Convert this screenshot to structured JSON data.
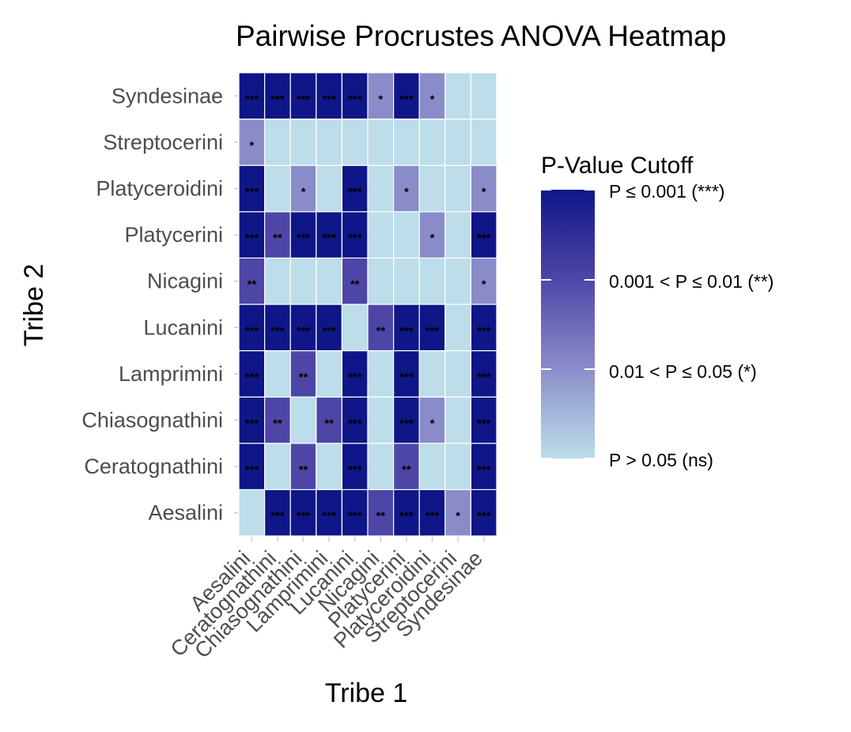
{
  "chart_data": {
    "type": "heatmap",
    "title": "Pairwise Procrustes ANOVA Heatmap",
    "xlabel": "Tribe 1",
    "ylabel": "Tribe 2",
    "x_categories": [
      "Aesalini",
      "Ceratognathini",
      "Chiasognathini",
      "Lamprimini",
      "Lucanini",
      "Nicagini",
      "Platycerini",
      "Platyceroidini",
      "Streptocerini",
      "Syndesinae"
    ],
    "y_categories": [
      "Aesalini",
      "Ceratognathini",
      "Chiasognathini",
      "Lamprimini",
      "Lucanini",
      "Nicagini",
      "Platycerini",
      "Platyceroidini",
      "Streptocerini",
      "Syndesinae"
    ],
    "levels": [
      "ns",
      "*",
      "**",
      "***"
    ],
    "matrix_y_by_x": [
      [
        "ns",
        "***",
        "***",
        "***",
        "***",
        "**",
        "***",
        "***",
        "*",
        "***"
      ],
      [
        "***",
        "ns",
        "**",
        "ns",
        "***",
        "ns",
        "**",
        "ns",
        "ns",
        "***"
      ],
      [
        "***",
        "**",
        "ns",
        "**",
        "***",
        "ns",
        "***",
        "*",
        "ns",
        "***"
      ],
      [
        "***",
        "ns",
        "**",
        "ns",
        "***",
        "ns",
        "***",
        "ns",
        "ns",
        "***"
      ],
      [
        "***",
        "***",
        "***",
        "***",
        "ns",
        "**",
        "***",
        "***",
        "ns",
        "***"
      ],
      [
        "**",
        "ns",
        "ns",
        "ns",
        "**",
        "ns",
        "ns",
        "ns",
        "ns",
        "*"
      ],
      [
        "***",
        "**",
        "***",
        "***",
        "***",
        "ns",
        "ns",
        "*",
        "ns",
        "***"
      ],
      [
        "***",
        "ns",
        "*",
        "ns",
        "***",
        "ns",
        "*",
        "ns",
        "ns",
        "*"
      ],
      [
        "*",
        "ns",
        "ns",
        "ns",
        "ns",
        "ns",
        "ns",
        "ns",
        "ns",
        "ns"
      ],
      [
        "***",
        "***",
        "***",
        "***",
        "***",
        "*",
        "***",
        "*",
        "ns",
        "ns"
      ]
    ],
    "colors": {
      "***": "#0f1687",
      "**": "#4e46a7",
      "*": "#8a8cc9",
      "ns": "#bcdde9"
    },
    "legend": {
      "title": "P-Value Cutoff",
      "position": "right",
      "labels": [
        "P ≤ 0.001 (***)",
        "0.001 < P ≤ 0.01 (**)",
        "0.01 < P ≤ 0.05 (*)",
        "P > 0.05 (ns)"
      ]
    }
  }
}
